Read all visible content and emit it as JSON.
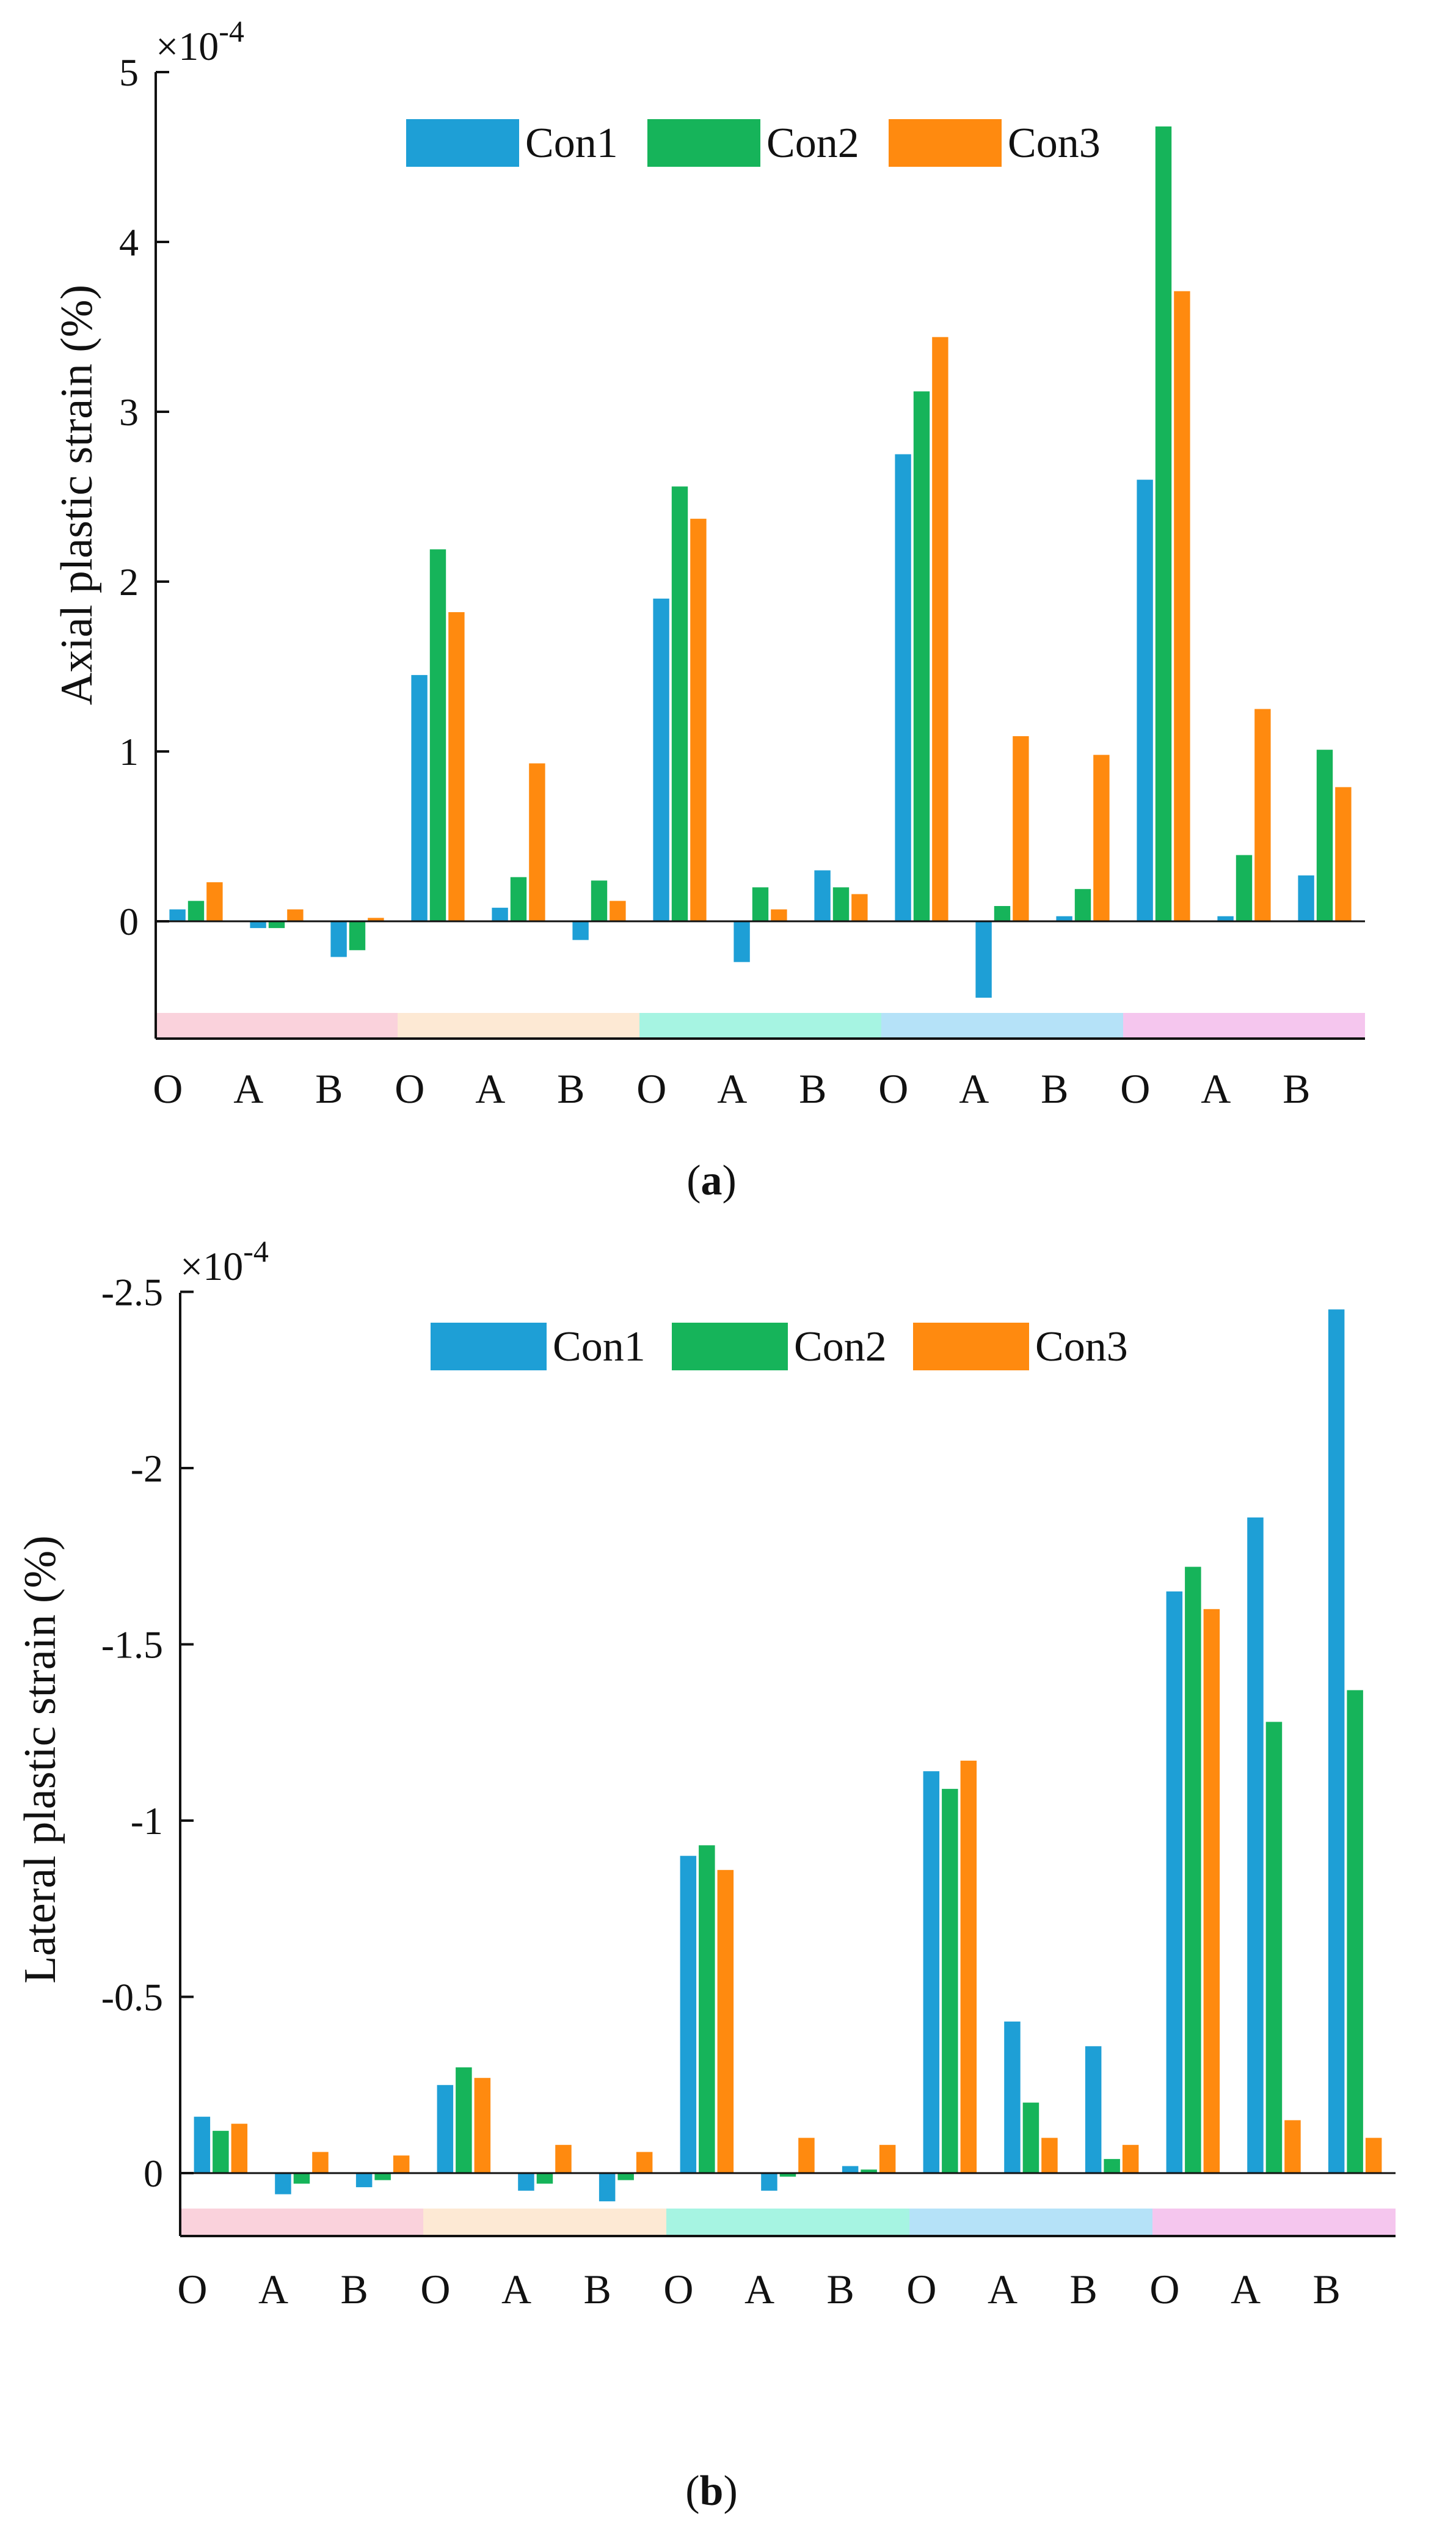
{
  "colors": {
    "Con1": "#1E9FD6",
    "Con2": "#16B45A",
    "Con3": "#FF8A0F"
  },
  "group_colors": [
    "#FAD2DC",
    "#FDE9D4",
    "#A6F4E2",
    "#B5E2F8",
    "#F5C6EE"
  ],
  "legend": [
    "Con1",
    "Con2",
    "Con3"
  ],
  "chart_data": [
    {
      "id": "a",
      "type": "bar",
      "caption_letter": "a",
      "exponent_label": "×10",
      "exponent_power": "-4",
      "ylabel": "Axial plastic strain (%)",
      "ylim": [
        -0.7,
        5
      ],
      "yticks": [
        0,
        1,
        2,
        3,
        4,
        5
      ],
      "ytick_labels": [
        "0",
        "1",
        "2",
        "3",
        "4",
        "5"
      ],
      "categories": [
        "O",
        "A",
        "B",
        "O",
        "A",
        "B",
        "O",
        "A",
        "B",
        "O",
        "A",
        "B",
        "O",
        "A",
        "B"
      ],
      "series": [
        {
          "name": "Con1",
          "values": [
            0.07,
            -0.04,
            -0.21,
            1.45,
            0.08,
            -0.11,
            1.9,
            -0.24,
            0.3,
            2.75,
            -0.45,
            0.03,
            2.6,
            0.03,
            0.27
          ]
        },
        {
          "name": "Con2",
          "values": [
            0.12,
            -0.04,
            -0.17,
            2.19,
            0.26,
            0.24,
            2.56,
            0.2,
            0.2,
            3.12,
            0.09,
            0.19,
            4.68,
            0.39,
            1.01
          ]
        },
        {
          "name": "Con3",
          "values": [
            0.23,
            0.07,
            0.02,
            1.82,
            0.93,
            0.12,
            2.37,
            0.07,
            0.16,
            3.44,
            1.09,
            0.98,
            3.71,
            1.25,
            0.79
          ]
        }
      ]
    },
    {
      "id": "b",
      "type": "bar",
      "caption_letter": "b",
      "exponent_label": "×10",
      "exponent_power": "-4",
      "ylabel": "Lateral plastic strain (%)",
      "ylim": [
        0.2,
        -2.5
      ],
      "y_inverted": true,
      "yticks": [
        0,
        -0.5,
        -1,
        -1.5,
        -2,
        -2.5
      ],
      "ytick_labels": [
        "0",
        "-0.5",
        "-1",
        "-1.5",
        "-2",
        "-2.5"
      ],
      "categories": [
        "O",
        "A",
        "B",
        "O",
        "A",
        "B",
        "O",
        "A",
        "B",
        "O",
        "A",
        "B",
        "O",
        "A",
        "B"
      ],
      "series": [
        {
          "name": "Con1",
          "values": [
            -0.16,
            0.06,
            0.04,
            -0.25,
            0.05,
            0.08,
            -0.9,
            0.05,
            -0.02,
            -1.14,
            -0.43,
            -0.36,
            -1.65,
            -1.86,
            -2.45
          ]
        },
        {
          "name": "Con2",
          "values": [
            -0.12,
            0.03,
            0.02,
            -0.3,
            0.03,
            0.02,
            -0.93,
            0.01,
            -0.01,
            -1.09,
            -0.2,
            -0.04,
            -1.72,
            -1.28,
            -1.37
          ]
        },
        {
          "name": "Con3",
          "values": [
            -0.14,
            -0.06,
            -0.05,
            -0.27,
            -0.08,
            -0.06,
            -0.86,
            -0.1,
            -0.08,
            -1.17,
            -0.1,
            -0.08,
            -1.6,
            -0.15,
            -0.1
          ]
        }
      ]
    }
  ]
}
